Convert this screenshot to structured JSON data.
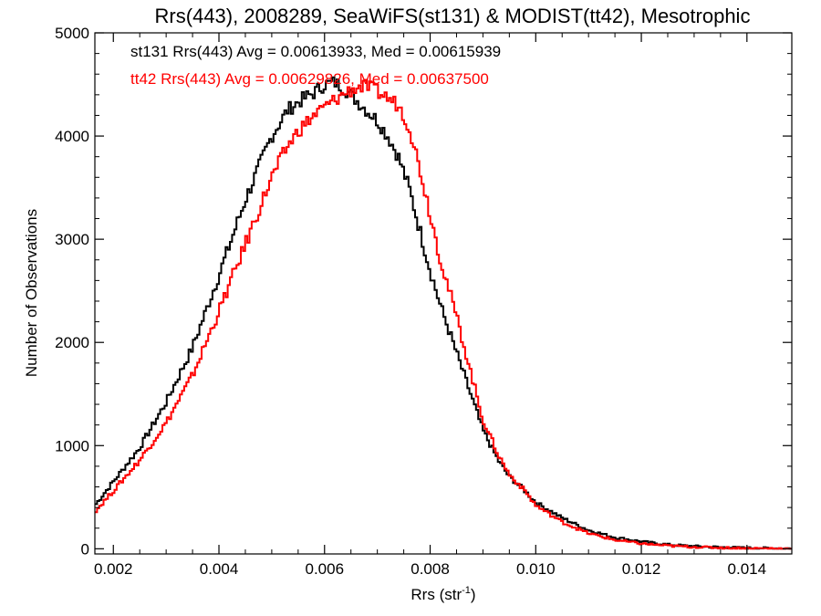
{
  "chart_data": {
    "type": "line",
    "step": true,
    "title": "Rrs(443), 2008289, SeaWiFS(st131) & MODIST(tt42), Mesotrophic",
    "xlabel": "Rrs (str",
    "xlabel_sup": "-1",
    "xlabel_close": ")",
    "ylabel": "Number of Observations",
    "xlim": [
      0.00165,
      0.01485
    ],
    "ylim": [
      -50,
      5000
    ],
    "xticks": [
      0.002,
      0.004,
      0.006,
      0.008,
      0.01,
      0.012,
      0.014
    ],
    "xtick_labels": [
      "0.002",
      "0.004",
      "0.006",
      "0.008",
      "0.010",
      "0.012",
      "0.014"
    ],
    "yticks": [
      0,
      1000,
      2000,
      3000,
      4000,
      5000
    ],
    "ytick_labels": [
      "0",
      "1000",
      "2000",
      "3000",
      "4000",
      "5000"
    ],
    "grid": false,
    "legend_placement": "top-left",
    "series": [
      {
        "name": "st131",
        "label": "st131 Rrs(443) Avg = 0.00613933, Med = 0.00615939",
        "color": "#000000",
        "x": [
          0.00165,
          0.002,
          0.0025,
          0.003,
          0.0035,
          0.004,
          0.0045,
          0.005,
          0.0053,
          0.0055,
          0.0058,
          0.006,
          0.0062,
          0.0064,
          0.0066,
          0.0068,
          0.007,
          0.0072,
          0.0074,
          0.0076,
          0.0078,
          0.008,
          0.0082,
          0.0085,
          0.0088,
          0.009,
          0.0093,
          0.0095,
          0.0098,
          0.01,
          0.0105,
          0.011,
          0.0115,
          0.012,
          0.0125,
          0.013,
          0.0135,
          0.014,
          0.01485
        ],
        "y": [
          420,
          650,
          980,
          1420,
          1950,
          2650,
          3380,
          4000,
          4250,
          4330,
          4420,
          4500,
          4520,
          4450,
          4350,
          4250,
          4150,
          4000,
          3800,
          3500,
          3100,
          2700,
          2350,
          1900,
          1450,
          1150,
          850,
          700,
          560,
          450,
          300,
          180,
          110,
          70,
          40,
          25,
          15,
          8,
          3
        ]
      },
      {
        "name": "tt42",
        "label": "tt42 Rrs(443) Avg = 0.00629826, Med = 0.00637500",
        "color": "#ff0000",
        "x": [
          0.00165,
          0.002,
          0.0025,
          0.003,
          0.0035,
          0.004,
          0.0045,
          0.005,
          0.0053,
          0.0055,
          0.0058,
          0.006,
          0.0062,
          0.0064,
          0.0066,
          0.0068,
          0.007,
          0.0072,
          0.0074,
          0.0076,
          0.0078,
          0.008,
          0.0082,
          0.0085,
          0.0088,
          0.009,
          0.0093,
          0.0095,
          0.0098,
          0.01,
          0.0105,
          0.011,
          0.0115,
          0.012,
          0.0125,
          0.013,
          0.0135,
          0.014,
          0.01485
        ],
        "y": [
          360,
          560,
          860,
          1220,
          1680,
          2300,
          2950,
          3600,
          3900,
          4050,
          4200,
          4280,
          4350,
          4420,
          4470,
          4480,
          4430,
          4370,
          4300,
          4100,
          3700,
          3250,
          2800,
          2250,
          1650,
          1250,
          900,
          720,
          560,
          420,
          260,
          150,
          85,
          50,
          30,
          18,
          10,
          5,
          2
        ]
      }
    ]
  }
}
